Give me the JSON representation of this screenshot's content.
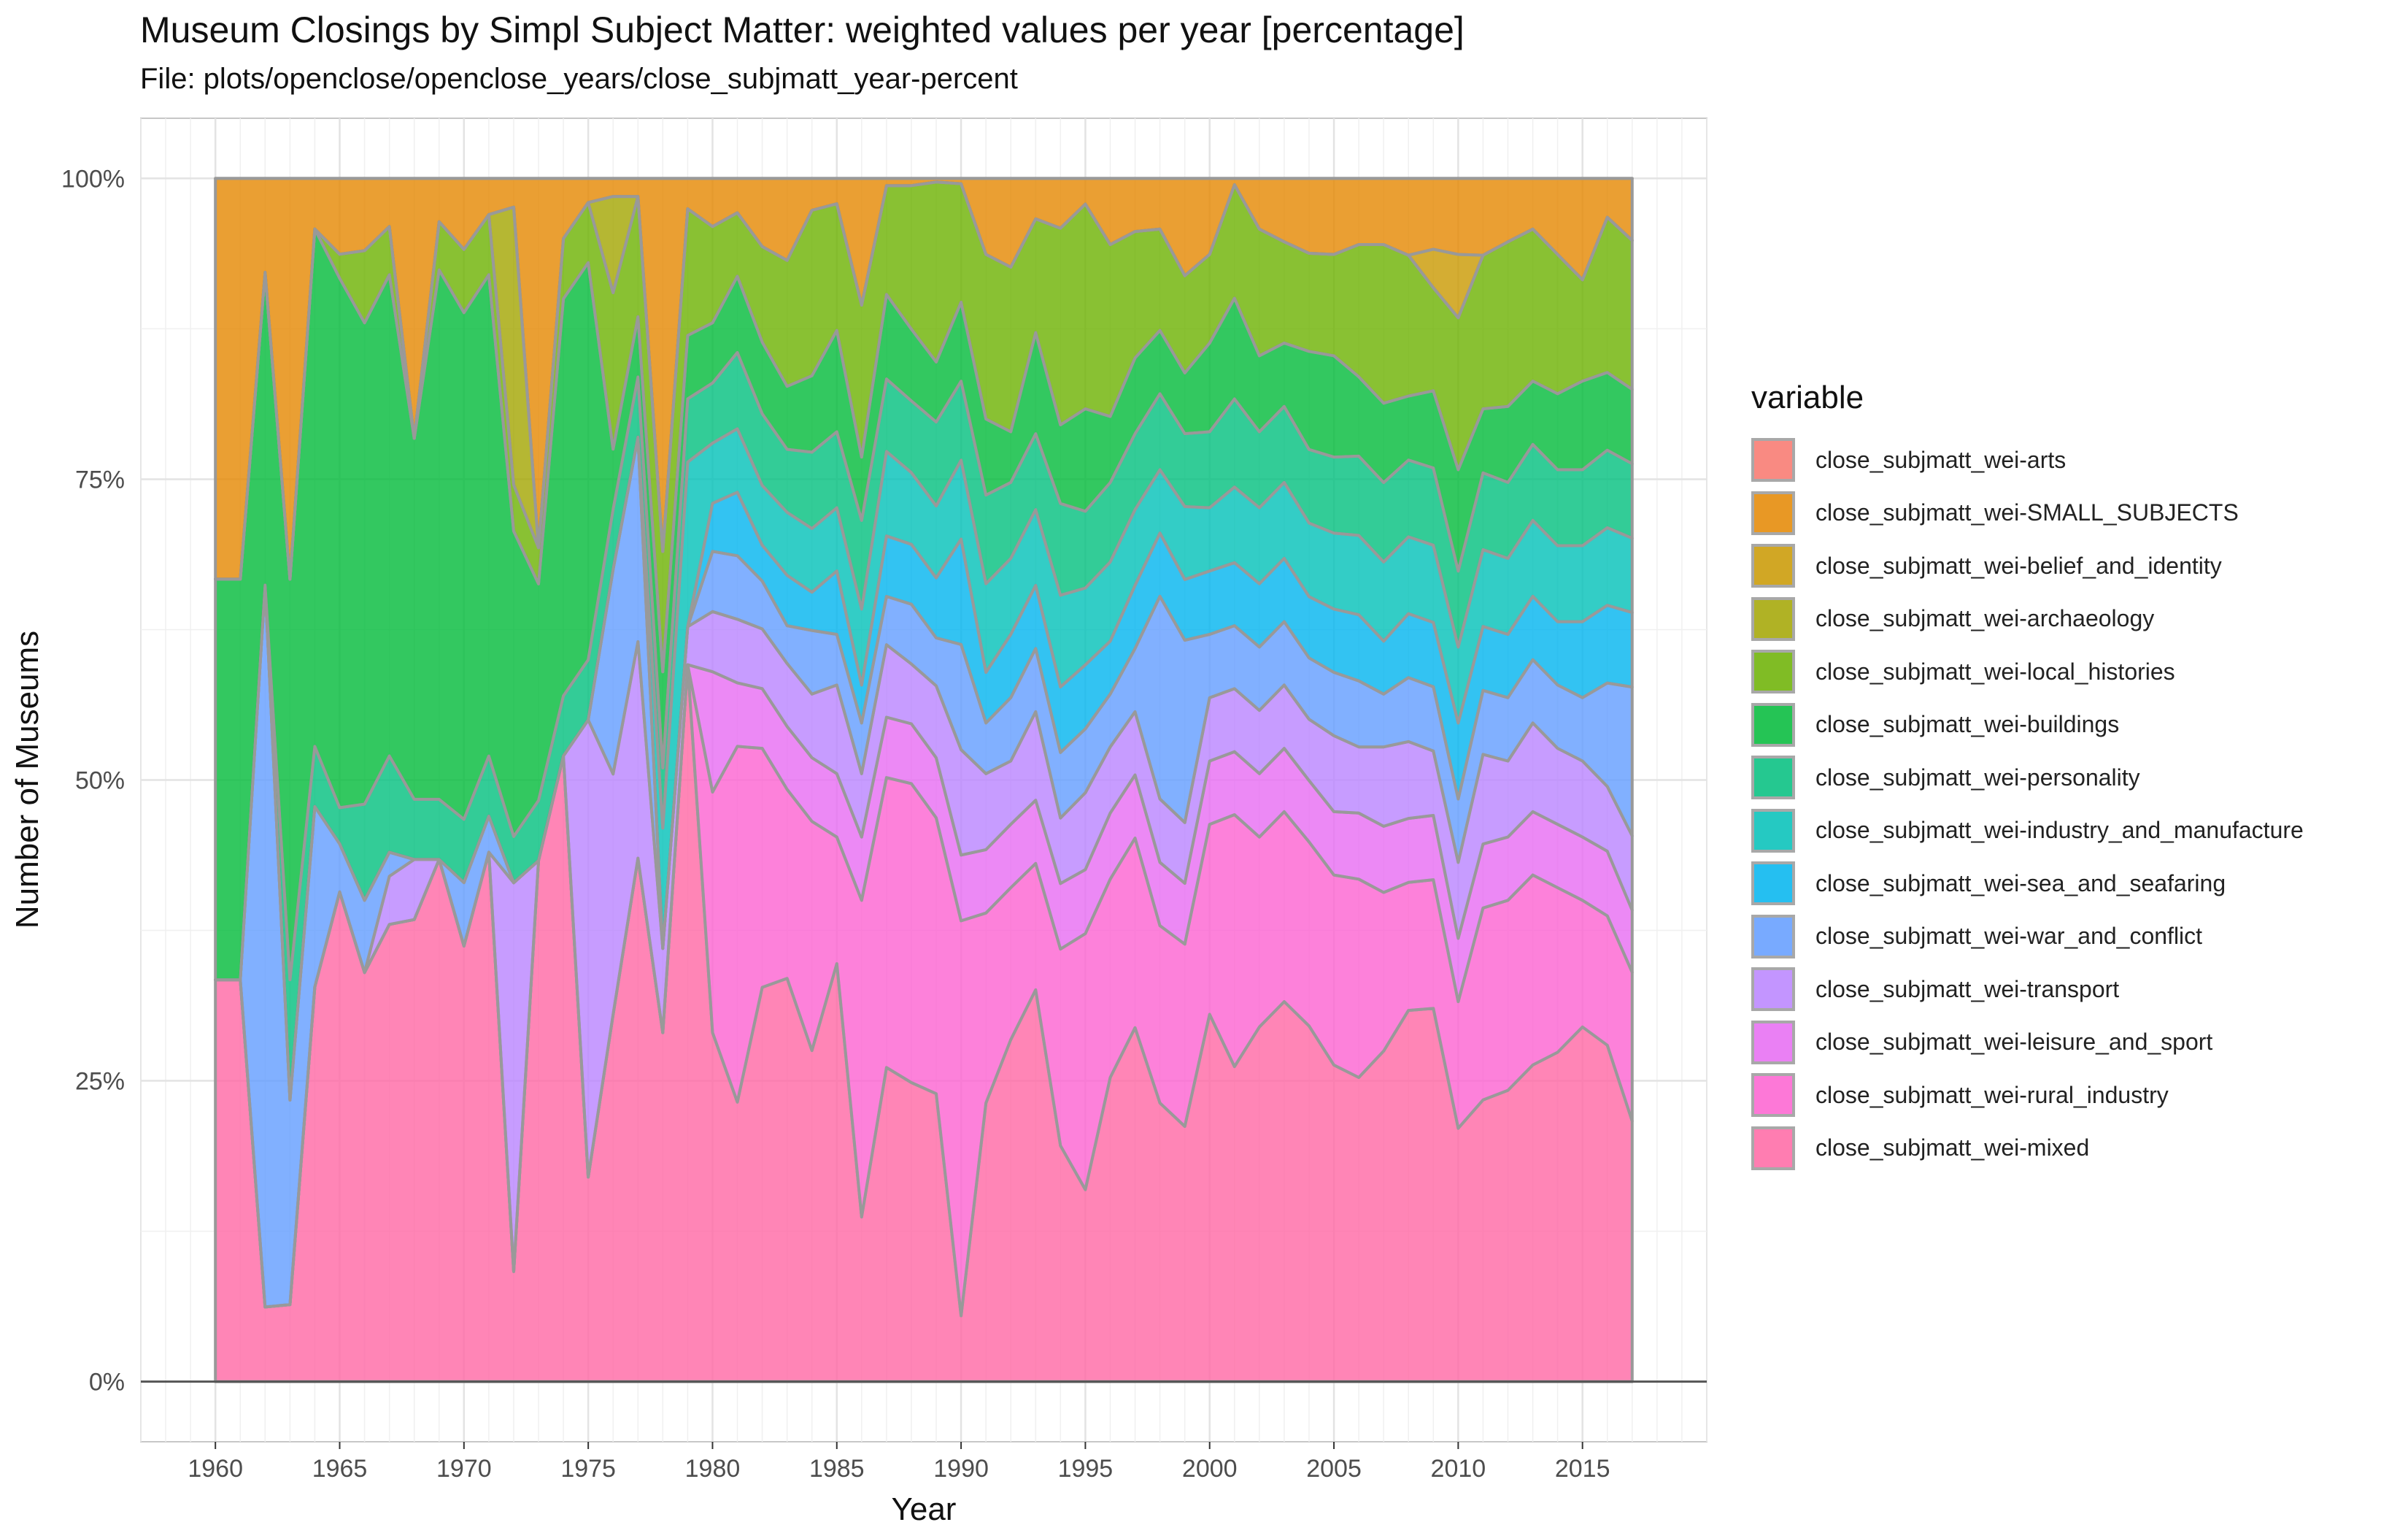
{
  "title": "Museum Closings by Simpl Subject Matter: weighted values per year [percentage]",
  "subtitle": "File: plots/openclose/openclose_years/close_subjmatt_year-percent",
  "legend": {
    "title": "variable"
  },
  "chart_data": {
    "type": "area",
    "stacked": true,
    "normalized": "percent",
    "xlabel": "Year",
    "ylabel": "Number of Museums",
    "xlim": [
      1957,
      2020
    ],
    "ylim": [
      -0.05,
      1.05
    ],
    "x_ticks": [
      1960,
      1965,
      1970,
      1975,
      1980,
      1985,
      1990,
      1995,
      2000,
      2005,
      2010,
      2015
    ],
    "y_ticks": [
      0,
      0.25,
      0.5,
      0.75,
      1.0
    ],
    "y_tick_labels": [
      "0%",
      "25%",
      "50%",
      "75%",
      "100%"
    ],
    "grid": true,
    "legend_position": "right",
    "x": [
      1960,
      1961,
      1962,
      1963,
      1964,
      1965,
      1966,
      1967,
      1968,
      1969,
      1970,
      1971,
      1972,
      1973,
      1974,
      1975,
      1976,
      1977,
      1978,
      1979,
      1980,
      1981,
      1982,
      1983,
      1984,
      1985,
      1986,
      1987,
      1988,
      1989,
      1990,
      1991,
      1992,
      1993,
      1994,
      1995,
      1996,
      1997,
      1998,
      1999,
      2000,
      2001,
      2002,
      2003,
      2004,
      2005,
      2006,
      2007,
      2008,
      2009,
      2010,
      2011,
      2012,
      2013,
      2014,
      2015,
      2016,
      2017
    ],
    "stack_order": "bottom-to-top (last series at bottom)",
    "series": [
      {
        "name": "close_subjmatt_wei-arts",
        "color": "#F8766D",
        "values": [
          0,
          0,
          0,
          0,
          0,
          0,
          0,
          0,
          0,
          0,
          0,
          0,
          0,
          0,
          0,
          0,
          0,
          0,
          0,
          0,
          0,
          0,
          0,
          0,
          0,
          0,
          0,
          0,
          0,
          0,
          0,
          0,
          0,
          0,
          0,
          0,
          0,
          0,
          0,
          0,
          0,
          0,
          0,
          0,
          0,
          0,
          0,
          0,
          0,
          0,
          0,
          0,
          0,
          0,
          0,
          0,
          0,
          0
        ]
      },
      {
        "name": "close_subjmatt_wei-SMALL_SUBJECTS",
        "color": "#E58700",
        "values": [
          0.333,
          0.333,
          0.078,
          0.333,
          0.042,
          0.063,
          0.06,
          0.04,
          0.216,
          0.036,
          0.056,
          0.03,
          0.031,
          0.307,
          0.05,
          0.02,
          0.015,
          0.015,
          0.31,
          0.024,
          0.04,
          0.027,
          0.057,
          0.065,
          0.025,
          0.02,
          0.1,
          0.006,
          0.006,
          0.003,
          0.004,
          0.06,
          0.07,
          0.032,
          0.038,
          0.02,
          0.05,
          0.042,
          0.04,
          0.08,
          0.06,
          0.005,
          0.04,
          0.05,
          0.061,
          0.06,
          0.05,
          0.05,
          0.06,
          0.055,
          0.06,
          0.06,
          0.05,
          0.04,
          0.06,
          0.08,
          0.03,
          0.05
        ]
      },
      {
        "name": "close_subjmatt_wei-belief_and_identity",
        "color": "#C99800",
        "values": [
          0,
          0,
          0,
          0,
          0,
          0,
          0,
          0,
          0,
          0,
          0,
          0,
          0,
          0,
          0,
          0,
          0,
          0,
          0,
          0,
          0,
          0,
          0,
          0,
          0,
          0,
          0,
          0,
          0,
          0,
          0,
          0,
          0,
          0,
          0,
          0,
          0,
          0,
          0,
          0,
          0,
          0,
          0,
          0,
          0,
          0,
          0,
          0,
          0,
          0.03,
          0.05,
          0,
          0,
          0,
          0,
          0,
          0,
          0
        ]
      },
      {
        "name": "close_subjmatt_wei-archaeology",
        "color": "#A3A500",
        "values": [
          0,
          0,
          0,
          0,
          0,
          0,
          0,
          0,
          0,
          0,
          0,
          0,
          0.3,
          0,
          0,
          0,
          0.08,
          0,
          0,
          0,
          0,
          0,
          0,
          0,
          0,
          0,
          0,
          0,
          0,
          0,
          0,
          0,
          0,
          0,
          0,
          0,
          0,
          0,
          0,
          0,
          0,
          0,
          0,
          0,
          0,
          0,
          0,
          0,
          0,
          0,
          0,
          0,
          0,
          0,
          0,
          0,
          0,
          0
        ]
      },
      {
        "name": "close_subjmatt_wei-local_histories",
        "color": "#6BB100",
        "values": [
          0,
          0,
          0,
          0,
          0,
          0.02,
          0.06,
          0.04,
          0,
          0.04,
          0.05,
          0.05,
          0.05,
          0.03,
          0.05,
          0.05,
          0.13,
          0.1,
          0.1,
          0.1,
          0.08,
          0.05,
          0.08,
          0.1,
          0.13,
          0.1,
          0.12,
          0.09,
          0.12,
          0.15,
          0.09,
          0.13,
          0.13,
          0.09,
          0.15,
          0.16,
          0.13,
          0.1,
          0.08,
          0.08,
          0.07,
          0.09,
          0.1,
          0.08,
          0.08,
          0.08,
          0.1,
          0.12,
          0.11,
          0.08,
          0.12,
          0.12,
          0.13,
          0.12,
          0.11,
          0.08,
          0.12,
          0.12
        ]
      },
      {
        "name": "close_subjmatt_wei-buildings",
        "color": "#00BA38",
        "values": [
          0.333,
          0.333,
          0.26,
          0.333,
          0.43,
          0.44,
          0.4,
          0.4,
          0.3,
          0.44,
          0.4,
          0.4,
          0.33,
          0.18,
          0.33,
          0.33,
          0.05,
          0.05,
          0.08,
          0.05,
          0.05,
          0.06,
          0.06,
          0.05,
          0.06,
          0.08,
          0.05,
          0.07,
          0.06,
          0.05,
          0.06,
          0.06,
          0.04,
          0.08,
          0.06,
          0.08,
          0.05,
          0.06,
          0.05,
          0.05,
          0.07,
          0.08,
          0.06,
          0.05,
          0.08,
          0.08,
          0.06,
          0.06,
          0.05,
          0.06,
          0.08,
          0.05,
          0.06,
          0.05,
          0.06,
          0.07,
          0.06,
          0.06
        ]
      },
      {
        "name": "close_subjmatt_wei-personality",
        "color": "#00BF7D",
        "values": [
          0,
          0,
          0,
          0.1,
          0.05,
          0.03,
          0.08,
          0.08,
          0.05,
          0.05,
          0.05,
          0.05,
          0.05,
          0.05,
          0.05,
          0.05,
          0.05,
          0.05,
          0.05,
          0.05,
          0.05,
          0.06,
          0.06,
          0.05,
          0.06,
          0.06,
          0.07,
          0.06,
          0.06,
          0.07,
          0.06,
          0.07,
          0.06,
          0.06,
          0.07,
          0.06,
          0.06,
          0.06,
          0.06,
          0.06,
          0.06,
          0.07,
          0.06,
          0.06,
          0.06,
          0.06,
          0.06,
          0.06,
          0.06,
          0.06,
          0.06,
          0.06,
          0.06,
          0.06,
          0.06,
          0.06,
          0.06,
          0.06
        ]
      },
      {
        "name": "close_subjmatt_wei-industry_and_manufacture",
        "color": "#00C0B8",
        "values": [
          0,
          0,
          0,
          0,
          0,
          0,
          0,
          0,
          0,
          0,
          0,
          0,
          0,
          0,
          0,
          0,
          0,
          0,
          0.1,
          0.13,
          0.05,
          0.05,
          0.05,
          0.05,
          0.05,
          0.05,
          0.06,
          0.07,
          0.06,
          0.06,
          0.06,
          0.07,
          0.06,
          0.06,
          0.07,
          0.06,
          0.06,
          0.06,
          0.05,
          0.06,
          0.05,
          0.06,
          0.06,
          0.06,
          0.06,
          0.06,
          0.06,
          0.06,
          0.06,
          0.06,
          0.06,
          0.06,
          0.06,
          0.06,
          0.06,
          0.06,
          0.06,
          0.06
        ]
      },
      {
        "name": "close_subjmatt_wei-sea_and_seafaring",
        "color": "#00B4EF",
        "values": [
          0,
          0,
          0,
          0,
          0,
          0,
          0,
          0,
          0,
          0,
          0,
          0,
          0,
          0,
          0,
          0,
          0,
          0,
          0,
          0,
          0.04,
          0.05,
          0.03,
          0.04,
          0.03,
          0.05,
          0.03,
          0.05,
          0.05,
          0.05,
          0.08,
          0.04,
          0.05,
          0.05,
          0.05,
          0.05,
          0.04,
          0.05,
          0.05,
          0.05,
          0.05,
          0.05,
          0.05,
          0.05,
          0.05,
          0.05,
          0.05,
          0.04,
          0.05,
          0.05,
          0.06,
          0.05,
          0.05,
          0.05,
          0.05,
          0.06,
          0.06,
          0.06
        ]
      },
      {
        "name": "close_subjmatt_wei-war_and_conflict",
        "color": "#619CFF",
        "values": [
          0,
          0,
          0.6,
          0.17,
          0.15,
          0.04,
          0.06,
          0.02,
          0,
          0,
          0.05,
          0.03,
          0,
          0,
          0,
          0,
          0.17,
          0.17,
          0,
          0,
          0.05,
          0.05,
          0.04,
          0.03,
          0.05,
          0.04,
          0.04,
          0.04,
          0.05,
          0.04,
          0.08,
          0.04,
          0.05,
          0.05,
          0.05,
          0.05,
          0.04,
          0.05,
          0.16,
          0.15,
          0.05,
          0.05,
          0.05,
          0.05,
          0.05,
          0.05,
          0.05,
          0.04,
          0.05,
          0.05,
          0.05,
          0.05,
          0.05,
          0.05,
          0.05,
          0.05,
          0.08,
          0.12
        ]
      },
      {
        "name": "close_subjmatt_wei-transport",
        "color": "#B983FF",
        "values": [
          0,
          0,
          0,
          0,
          0,
          0,
          0,
          0.04,
          0.05,
          0,
          0,
          0,
          0.42,
          0,
          0,
          0.38,
          0.2,
          0.18,
          0.07,
          0.03,
          0.05,
          0.05,
          0.05,
          0.05,
          0.05,
          0.07,
          0.05,
          0.06,
          0.05,
          0.06,
          0.08,
          0.06,
          0.05,
          0.07,
          0.05,
          0.06,
          0.05,
          0.05,
          0.05,
          0.05,
          0.05,
          0.05,
          0.05,
          0.05,
          0.05,
          0.06,
          0.05,
          0.06,
          0.06,
          0.05,
          0.06,
          0.07,
          0.06,
          0.07,
          0.06,
          0.06,
          0.05,
          0.06
        ]
      },
      {
        "name": "close_subjmatt_wei-leisure_and_sport",
        "color": "#E76BF3",
        "values": [
          0,
          0,
          0,
          0,
          0,
          0,
          0,
          0,
          0,
          0,
          0,
          0,
          0,
          0,
          0,
          0,
          0,
          0,
          0,
          0,
          0.1,
          0.05,
          0.05,
          0.05,
          0.05,
          0.05,
          0.05,
          0.05,
          0.05,
          0.05,
          0.05,
          0.05,
          0.05,
          0.05,
          0.05,
          0.05,
          0.05,
          0.05,
          0.05,
          0.05,
          0.05,
          0.05,
          0.05,
          0.05,
          0.05,
          0.05,
          0.05,
          0.05,
          0.05,
          0.05,
          0.05,
          0.05,
          0.05,
          0.05,
          0.05,
          0.05,
          0.05,
          0.05
        ]
      },
      {
        "name": "close_subjmatt_wei-rural_industry",
        "color": "#FD61D1",
        "values": [
          0,
          0,
          0,
          0,
          0,
          0,
          0,
          0,
          0,
          0,
          0,
          0,
          0,
          0,
          0,
          0,
          0,
          0,
          0,
          0,
          0.2,
          0.28,
          0.2,
          0.15,
          0.18,
          0.1,
          0.25,
          0.24,
          0.25,
          0.23,
          0.3,
          0.15,
          0.12,
          0.1,
          0.15,
          0.2,
          0.15,
          0.15,
          0.14,
          0.15,
          0.15,
          0.2,
          0.15,
          0.15,
          0.15,
          0.15,
          0.15,
          0.12,
          0.1,
          0.1,
          0.1,
          0.15,
          0.15,
          0.15,
          0.13,
          0.1,
          0.1,
          0.12
        ]
      },
      {
        "name": "close_subjmatt_wei-mixed",
        "color": "#FF67A4",
        "values": [
          0.334,
          0.334,
          0.062,
          0.064,
          0.328,
          0.407,
          0.34,
          0.38,
          0.384,
          0.434,
          0.344,
          0.44,
          0.119,
          0.433,
          0.52,
          0.17,
          0.305,
          0.435,
          0.29,
          0.566,
          0.29,
          0.22,
          0.33,
          0.32,
          0.26,
          0.33,
          0.13,
          0.26,
          0.25,
          0.24,
          0.05,
          0.22,
          0.27,
          0.31,
          0.18,
          0.15,
          0.23,
          0.28,
          0.22,
          0.21,
          0.29,
          0.25,
          0.28,
          0.3,
          0.29,
          0.25,
          0.23,
          0.25,
          0.29,
          0.29,
          0.2,
          0.22,
          0.23,
          0.25,
          0.26,
          0.28,
          0.26,
          0.21
        ]
      }
    ]
  }
}
